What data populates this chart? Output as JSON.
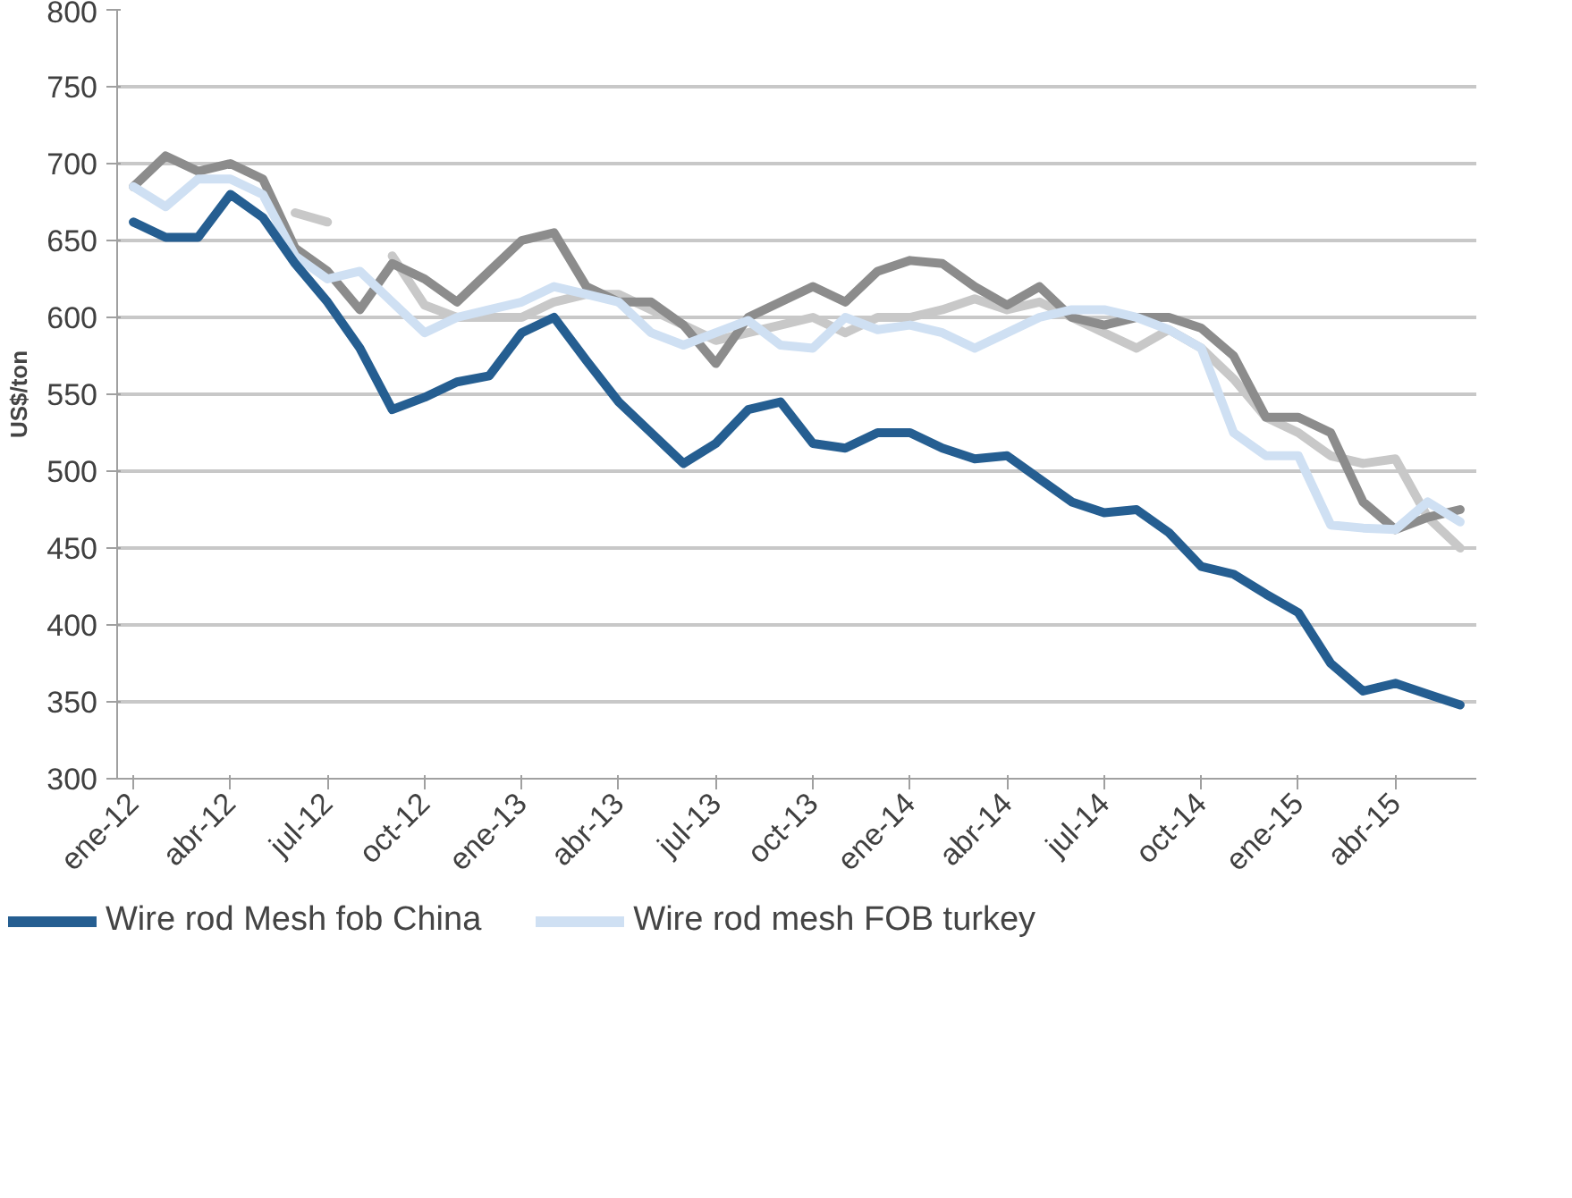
{
  "chart_data": {
    "type": "line",
    "ylabel": "US$/ton",
    "ylim": [
      300,
      800
    ],
    "yticks": [
      300,
      350,
      400,
      450,
      500,
      550,
      600,
      650,
      700,
      750,
      800
    ],
    "grid": "y",
    "legend": "bottom",
    "line_style": "solid",
    "marker": "none",
    "categories": [
      "ene-12",
      null,
      null,
      "abr-12",
      null,
      null,
      "jul-12",
      null,
      null,
      "oct-12",
      null,
      null,
      "ene-13",
      null,
      null,
      "abr-13",
      null,
      null,
      "jul-13",
      null,
      null,
      "oct-13",
      null,
      null,
      "ene-14",
      null,
      null,
      "abr-14",
      null,
      null,
      "jul-14",
      null,
      null,
      "oct-14",
      null,
      null,
      "ene-15",
      null,
      null,
      "abr-15",
      null,
      null
    ],
    "series": [
      {
        "name": "Wire rod Mesh fob China",
        "color": "#255e91",
        "values": [
          662,
          652,
          652,
          680,
          665,
          635,
          610,
          580,
          540,
          548,
          558,
          562,
          590,
          600,
          572,
          545,
          525,
          505,
          518,
          540,
          545,
          518,
          515,
          525,
          525,
          515,
          508,
          510,
          495,
          480,
          473,
          475,
          460,
          438,
          433,
          420,
          408,
          375,
          357,
          362,
          355,
          348
        ]
      },
      {
        "name": "Wire rod mesh FOB turkey",
        "color": "#cfe0f3",
        "values": [
          685,
          672,
          690,
          690,
          680,
          640,
          625,
          630,
          610,
          590,
          600,
          605,
          610,
          620,
          615,
          610,
          590,
          582,
          590,
          598,
          582,
          580,
          600,
          592,
          595,
          590,
          580,
          590,
          600,
          605,
          605,
          600,
          592,
          580,
          525,
          510,
          510,
          465,
          463,
          462,
          480,
          467
        ]
      },
      {
        "color": "#8c8c8c",
        "values": [
          685,
          705,
          695,
          700,
          690,
          645,
          630,
          605,
          635,
          625,
          610,
          630,
          650,
          655,
          620,
          610,
          610,
          595,
          570,
          600,
          610,
          620,
          610,
          630,
          637,
          635,
          620,
          608,
          620,
          600,
          595,
          600,
          600,
          593,
          575,
          535,
          535,
          525,
          480,
          462,
          470,
          475
        ]
      },
      {
        "color": "#c8c8c8",
        "values": [
          null,
          null,
          null,
          null,
          null,
          668,
          662,
          null,
          640,
          608,
          600,
          600,
          600,
          610,
          615,
          615,
          605,
          595,
          585,
          590,
          595,
          600,
          590,
          600,
          600,
          605,
          612,
          605,
          610,
          600,
          590,
          580,
          592,
          580,
          560,
          535,
          525,
          510,
          505,
          508,
          470,
          450
        ]
      }
    ]
  }
}
